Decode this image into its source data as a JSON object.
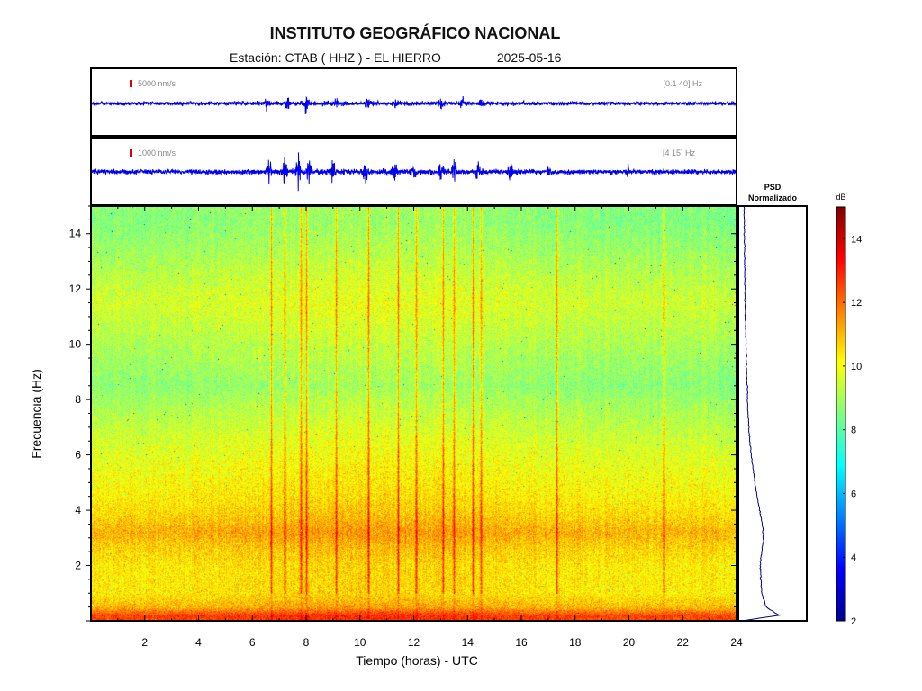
{
  "header": {
    "title": "INSTITUTO GEOGRÁFICO NACIONAL",
    "station_label": "Estación:",
    "station": "CTAB ( HHZ ) - EL HIERRO",
    "date": "2025-05-16"
  },
  "colors": {
    "trace": "#0000ee",
    "scale_marker": "#dd0000",
    "frame": "#000000",
    "psd_line": "#00008b"
  },
  "chart_data": [
    {
      "type": "line",
      "name": "seismogram-broadband",
      "scale_label": "5000 nm/s",
      "filter_label": "[0.1 40] Hz",
      "x_unit": "horas UTC",
      "xlim": [
        0,
        24
      ],
      "activity": [
        {
          "t": 6.5,
          "amp": 0.6
        },
        {
          "t": 7.3,
          "amp": 0.7
        },
        {
          "t": 8.0,
          "amp": 0.9
        },
        {
          "t": 9.1,
          "amp": 0.5
        },
        {
          "t": 10.3,
          "amp": 0.5
        },
        {
          "t": 11.3,
          "amp": 0.4
        },
        {
          "t": 13.0,
          "amp": 0.5
        },
        {
          "t": 13.8,
          "amp": 0.5
        },
        {
          "t": 14.5,
          "amp": 0.4
        }
      ]
    },
    {
      "type": "line",
      "name": "seismogram-filtered",
      "scale_label": "1000 nm/s",
      "filter_label": "[4 15] Hz",
      "x_unit": "horas UTC",
      "xlim": [
        0,
        24
      ],
      "activity": [
        {
          "t": 6.6,
          "amp": 0.7
        },
        {
          "t": 7.2,
          "amp": 0.9
        },
        {
          "t": 7.7,
          "amp": 1.0
        },
        {
          "t": 8.1,
          "amp": 0.8
        },
        {
          "t": 9.0,
          "amp": 0.6
        },
        {
          "t": 10.2,
          "amp": 0.6
        },
        {
          "t": 11.3,
          "amp": 0.5
        },
        {
          "t": 12.0,
          "amp": 0.4
        },
        {
          "t": 13.0,
          "amp": 0.7
        },
        {
          "t": 13.5,
          "amp": 0.6
        },
        {
          "t": 14.4,
          "amp": 0.5
        },
        {
          "t": 15.6,
          "amp": 0.4
        },
        {
          "t": 17.0,
          "amp": 0.3
        },
        {
          "t": 20.0,
          "amp": 0.3
        }
      ]
    },
    {
      "type": "heatmap",
      "name": "spectrogram",
      "xlabel": "Tiempo (horas) - UTC",
      "ylabel": "Frecuencia  (Hz)",
      "xlim": [
        0,
        24
      ],
      "ylim": [
        0,
        15
      ],
      "x_ticks": [
        2,
        4,
        6,
        8,
        10,
        12,
        14,
        16,
        18,
        20,
        22,
        24
      ],
      "y_ticks": [
        2,
        4,
        6,
        8,
        10,
        12,
        14
      ],
      "z_unit": "dB",
      "zlim": [
        2,
        15
      ],
      "profile": [
        {
          "f": 0.2,
          "db": 12.5
        },
        {
          "f": 0.5,
          "db": 11.0
        },
        {
          "f": 1.0,
          "db": 10.3
        },
        {
          "f": 2.0,
          "db": 10.3
        },
        {
          "f": 2.6,
          "db": 10.6
        },
        {
          "f": 3.2,
          "db": 11.1
        },
        {
          "f": 3.8,
          "db": 10.6
        },
        {
          "f": 4.5,
          "db": 10.2
        },
        {
          "f": 6.0,
          "db": 9.7
        },
        {
          "f": 7.5,
          "db": 9.1
        },
        {
          "f": 8.5,
          "db": 8.6
        },
        {
          "f": 9.5,
          "db": 8.9
        },
        {
          "f": 10.5,
          "db": 9.2
        },
        {
          "f": 11.5,
          "db": 9.5
        },
        {
          "f": 12.5,
          "db": 9.2
        },
        {
          "f": 13.5,
          "db": 8.8
        },
        {
          "f": 14.5,
          "db": 8.5
        },
        {
          "f": 15.0,
          "db": 8.6
        }
      ],
      "events_hours": [
        6.7,
        7.2,
        7.8,
        8.0,
        9.1,
        10.3,
        11.4,
        12.1,
        13.1,
        13.5,
        14.2,
        14.5,
        17.3,
        21.3
      ]
    },
    {
      "type": "line",
      "name": "psd-normalized",
      "title": "PSD\nNormalizado",
      "points": [
        {
          "f": 0.0,
          "v": 0.02
        },
        {
          "f": 0.2,
          "v": 0.6
        },
        {
          "f": 0.5,
          "v": 0.4
        },
        {
          "f": 1.0,
          "v": 0.33
        },
        {
          "f": 2.0,
          "v": 0.31
        },
        {
          "f": 3.0,
          "v": 0.36
        },
        {
          "f": 3.5,
          "v": 0.34
        },
        {
          "f": 4.5,
          "v": 0.26
        },
        {
          "f": 6.0,
          "v": 0.17
        },
        {
          "f": 7.0,
          "v": 0.13
        },
        {
          "f": 9.0,
          "v": 0.1
        },
        {
          "f": 11.0,
          "v": 0.08
        },
        {
          "f": 13.0,
          "v": 0.07
        },
        {
          "f": 15.0,
          "v": 0.06
        }
      ]
    },
    {
      "type": "colorbar",
      "name": "db-colorbar",
      "label": "dB",
      "ticks": [
        2,
        4,
        6,
        8,
        10,
        12,
        14
      ],
      "zlim": [
        2,
        15
      ]
    }
  ]
}
